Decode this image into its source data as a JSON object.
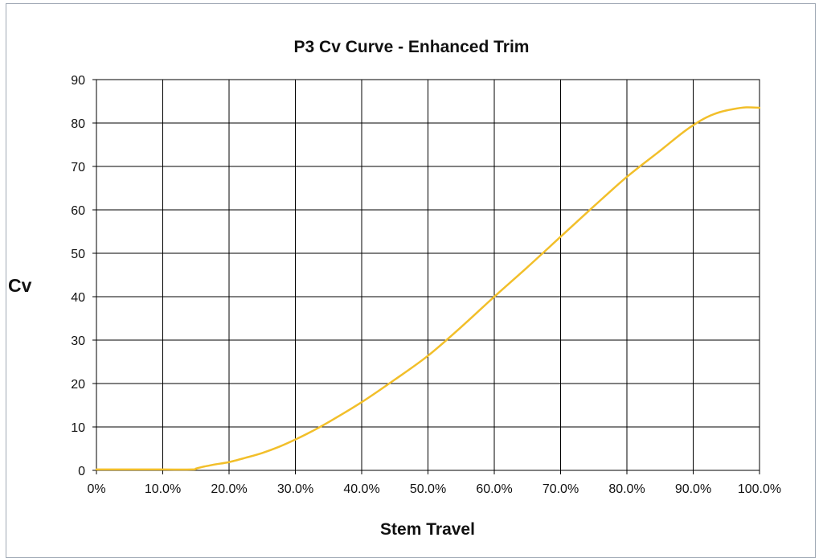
{
  "chart_data": {
    "type": "line",
    "title": "P3 Cv Curve - Enhanced Trim",
    "xlabel": "Stem Travel",
    "ylabel": "Cv",
    "x_ticks": [
      0,
      10,
      20,
      30,
      40,
      50,
      60,
      70,
      80,
      90,
      100
    ],
    "x_tick_labels": [
      "0%",
      "10.0%",
      "20.0%",
      "30.0%",
      "40.0%",
      "50.0%",
      "60.0%",
      "70.0%",
      "80.0%",
      "90.0%",
      "100.0%"
    ],
    "y_ticks": [
      0,
      10,
      20,
      30,
      40,
      50,
      60,
      70,
      80,
      90
    ],
    "y_tick_labels": [
      "0",
      "10",
      "20",
      "30",
      "40",
      "50",
      "60",
      "70",
      "80",
      "90"
    ],
    "xlim": [
      0,
      100
    ],
    "ylim": [
      0,
      90
    ],
    "grid": true,
    "legend": "none",
    "series": [
      {
        "color": "#f2bf2a",
        "x": [
          0,
          5,
          10,
          14.5,
          15,
          16,
          17,
          18,
          20,
          22.5,
          25,
          27.5,
          30,
          32.5,
          35,
          40,
          45,
          50,
          55,
          60,
          65,
          70,
          75,
          80,
          85,
          88,
          90,
          92,
          94,
          96,
          98,
          100
        ],
        "y": [
          0.2,
          0.2,
          0.2,
          0.2,
          0.4,
          0.8,
          1.1,
          1.4,
          1.9,
          2.9,
          4.0,
          5.4,
          7.1,
          9.0,
          11.1,
          15.7,
          20.9,
          26.4,
          33.0,
          40.0,
          46.8,
          53.8,
          60.8,
          67.6,
          73.6,
          77.3,
          79.5,
          81.3,
          82.5,
          83.2,
          83.6,
          83.5
        ]
      }
    ]
  }
}
